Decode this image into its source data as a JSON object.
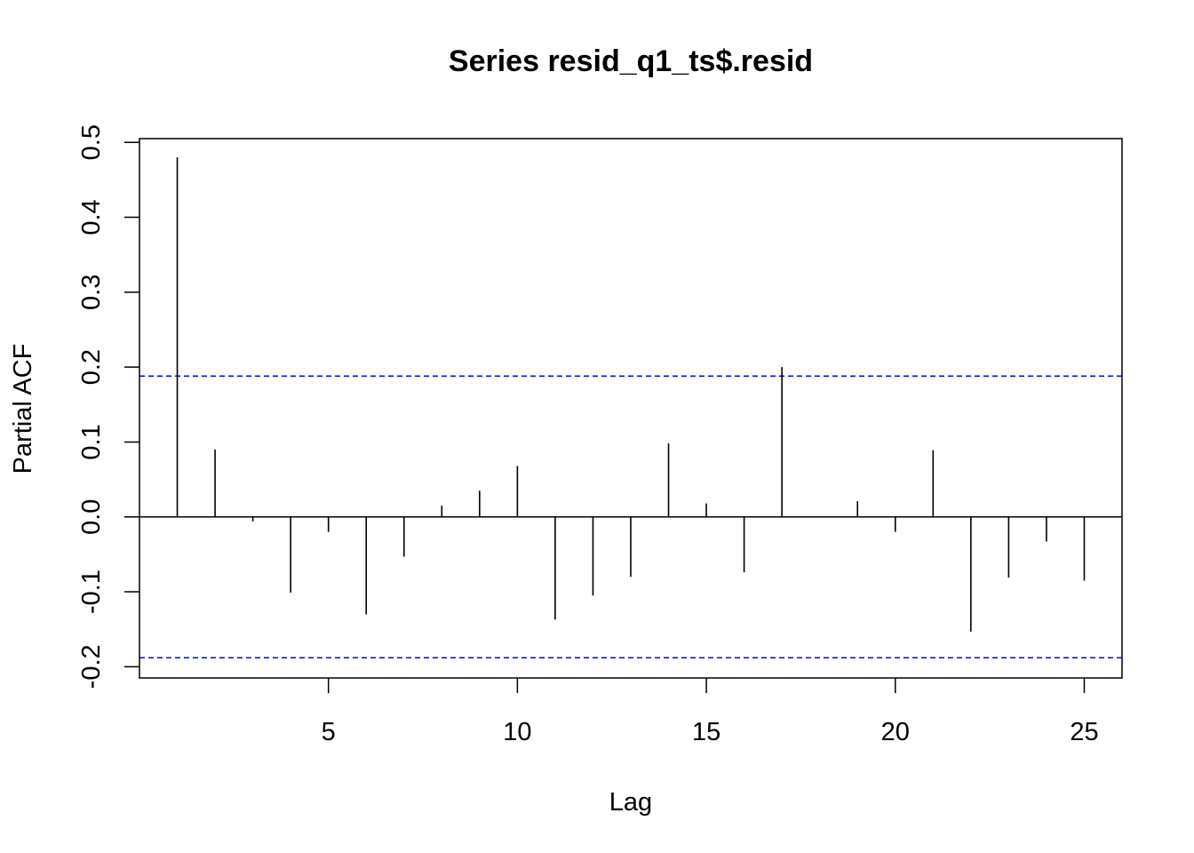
{
  "chart_data": {
    "type": "bar",
    "title": "Series  resid_q1_ts$.resid",
    "xlabel": "Lag",
    "ylabel": "Partial ACF",
    "xlim": [
      0.0,
      26.0
    ],
    "ylim": [
      -0.215,
      0.505
    ],
    "x_ticks": [
      5,
      10,
      15,
      20,
      25
    ],
    "y_ticks": [
      -0.2,
      -0.1,
      0.0,
      0.1,
      0.2,
      0.3,
      0.4,
      0.5
    ],
    "x_tick_labels": [
      "5",
      "10",
      "15",
      "20",
      "25"
    ],
    "y_tick_labels": [
      "-0.2",
      "-0.1",
      "0.0",
      "0.1",
      "0.2",
      "0.3",
      "0.4",
      "0.5"
    ],
    "confidence_bound": 0.188,
    "confidence_color": "#0000FF",
    "bar_color": "#000000",
    "lags": [
      1,
      2,
      3,
      4,
      5,
      6,
      7,
      8,
      9,
      10,
      11,
      12,
      13,
      14,
      15,
      16,
      17,
      18,
      19,
      20,
      21,
      22,
      23,
      24,
      25
    ],
    "values": [
      0.48,
      0.09,
      -0.006,
      -0.101,
      -0.02,
      -0.13,
      -0.053,
      0.015,
      0.035,
      0.068,
      -0.137,
      -0.105,
      -0.08,
      0.098,
      0.018,
      -0.074,
      0.2,
      0.0,
      0.021,
      -0.02,
      0.089,
      -0.153,
      -0.081,
      -0.033,
      -0.085
    ],
    "grid": false
  }
}
